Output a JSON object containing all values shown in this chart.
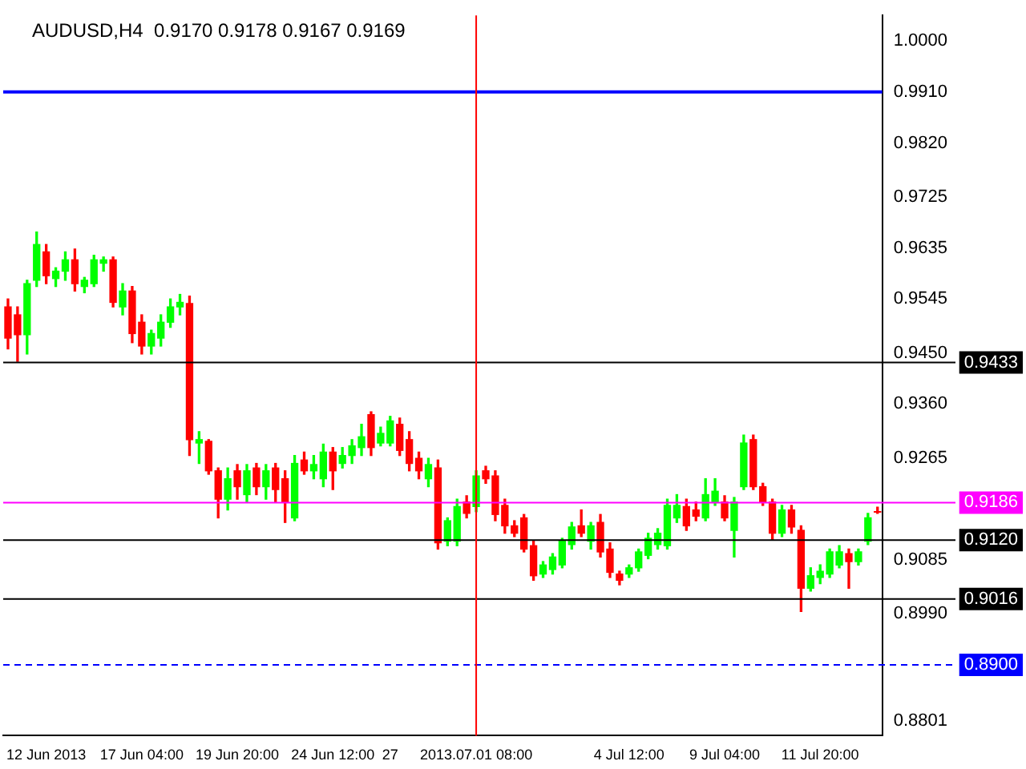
{
  "chart_data": {
    "type": "candlestick",
    "title": "AUDUSD,H4  0.9170 0.9178 0.9167 0.9169",
    "categories": [
      null,
      null,
      null,
      null,
      "12 Jun 2013",
      null,
      null,
      null,
      null,
      null,
      null,
      null,
      null,
      null,
      "17 Jun 04:00",
      null,
      null,
      null,
      null,
      null,
      null,
      null,
      null,
      null,
      "19 Jun 20:00",
      null,
      null,
      null,
      null,
      null,
      null,
      null,
      null,
      null,
      "24 Jun 12:00",
      null,
      null,
      null,
      null,
      null,
      "27",
      null,
      null,
      null,
      null,
      null,
      null,
      null,
      null,
      "2013.07.01 08:00",
      null,
      null,
      null,
      null,
      null,
      null,
      null,
      null,
      null,
      null,
      null,
      null,
      null,
      null,
      null,
      "4 Jul 12:00",
      null,
      null,
      null,
      null,
      null,
      null,
      null,
      null,
      null,
      "9 Jul 04:00",
      null,
      null,
      null,
      null,
      null,
      null,
      null,
      null,
      null,
      "11 Jul 20:00",
      null,
      null,
      null,
      null,
      null,
      null
    ],
    "ohlc": [
      [
        0.9531,
        0.9545,
        0.9457,
        0.9476
      ],
      [
        0.9517,
        0.9531,
        0.9435,
        0.9482
      ],
      [
        0.9482,
        0.9578,
        0.9448,
        0.9572
      ],
      [
        0.9578,
        0.9663,
        0.9567,
        0.9641
      ],
      [
        0.9628,
        0.9641,
        0.9572,
        0.9586
      ],
      [
        0.9581,
        0.96,
        0.9567,
        0.9594
      ],
      [
        0.9594,
        0.9628,
        0.9578,
        0.9614
      ],
      [
        0.9614,
        0.9633,
        0.9559,
        0.9572
      ],
      [
        0.9567,
        0.9583,
        0.9556,
        0.9578
      ],
      [
        0.9572,
        0.9622,
        0.9567,
        0.9614
      ],
      [
        0.9608,
        0.9619,
        0.9594,
        0.9614
      ],
      [
        0.9614,
        0.9619,
        0.9531,
        0.9539
      ],
      [
        0.9531,
        0.9572,
        0.9517,
        0.9559
      ],
      [
        0.9559,
        0.9567,
        0.9468,
        0.9484
      ],
      [
        0.9504,
        0.9517,
        0.9448,
        0.9462
      ],
      [
        0.9462,
        0.949,
        0.9448,
        0.9484
      ],
      [
        0.9476,
        0.9517,
        0.9462,
        0.9504
      ],
      [
        0.9504,
        0.9545,
        0.9495,
        0.9531
      ],
      [
        0.9531,
        0.9553,
        0.9517,
        0.9539
      ],
      [
        0.9537,
        0.955,
        0.9269,
        0.9297
      ],
      [
        0.9291,
        0.9311,
        0.9255,
        0.9297
      ],
      [
        0.9294,
        0.9297,
        0.9236,
        0.9242
      ],
      [
        0.9242,
        0.9247,
        0.9159,
        0.9192
      ],
      [
        0.9192,
        0.9247,
        0.9173,
        0.9228
      ],
      [
        0.9242,
        0.9253,
        0.9192,
        0.9214
      ],
      [
        0.92,
        0.9253,
        0.9187,
        0.9242
      ],
      [
        0.9247,
        0.9255,
        0.92,
        0.9214
      ],
      [
        0.9214,
        0.9253,
        0.9192,
        0.9242
      ],
      [
        0.9247,
        0.9255,
        0.9187,
        0.9209
      ],
      [
        0.9228,
        0.9242,
        0.9151,
        0.9187
      ],
      [
        0.9159,
        0.9269,
        0.9154,
        0.9255
      ],
      [
        0.9261,
        0.9275,
        0.9236,
        0.9242
      ],
      [
        0.9242,
        0.9269,
        0.9228,
        0.9253
      ],
      [
        0.9228,
        0.9289,
        0.9214,
        0.9275
      ],
      [
        0.9275,
        0.9283,
        0.9209,
        0.9242
      ],
      [
        0.9255,
        0.9283,
        0.9247,
        0.9269
      ],
      [
        0.9269,
        0.9297,
        0.9255,
        0.9286
      ],
      [
        0.9283,
        0.9324,
        0.9269,
        0.9302
      ],
      [
        0.9341,
        0.9346,
        0.9269,
        0.9283
      ],
      [
        0.9291,
        0.9319,
        0.9286,
        0.9308
      ],
      [
        0.9291,
        0.9338,
        0.9286,
        0.933
      ],
      [
        0.9324,
        0.9335,
        0.9269,
        0.9278
      ],
      [
        0.9297,
        0.9311,
        0.9242,
        0.9255
      ],
      [
        0.9264,
        0.9275,
        0.9228,
        0.9242
      ],
      [
        0.9228,
        0.9264,
        0.9214,
        0.9253
      ],
      [
        0.9247,
        0.9261,
        0.9104,
        0.9115
      ],
      [
        0.9118,
        0.9159,
        0.911,
        0.9154
      ],
      [
        0.9118,
        0.9192,
        0.911,
        0.9179
      ],
      [
        0.9187,
        0.9198,
        0.9159,
        0.9167
      ],
      [
        0.9179,
        0.9242,
        0.917,
        0.9233
      ],
      [
        0.9242,
        0.925,
        0.922,
        0.9228
      ],
      [
        0.9233,
        0.9242,
        0.9154,
        0.9165
      ],
      [
        0.9181,
        0.9192,
        0.9132,
        0.9145
      ],
      [
        0.9145,
        0.9154,
        0.9126,
        0.9132
      ],
      [
        0.9159,
        0.9165,
        0.9099,
        0.9104
      ],
      [
        0.911,
        0.9118,
        0.9049,
        0.9057
      ],
      [
        0.906,
        0.9082,
        0.9054,
        0.9076
      ],
      [
        0.9068,
        0.9096,
        0.906,
        0.909
      ],
      [
        0.9076,
        0.9123,
        0.9071,
        0.9118
      ],
      [
        0.9112,
        0.9151,
        0.9104,
        0.9143
      ],
      [
        0.9145,
        0.9173,
        0.9126,
        0.9132
      ],
      [
        0.9118,
        0.9151,
        0.9104,
        0.9145
      ],
      [
        0.9151,
        0.9165,
        0.909,
        0.9099
      ],
      [
        0.9104,
        0.9115,
        0.9054,
        0.9063
      ],
      [
        0.906,
        0.9065,
        0.9041,
        0.9049
      ],
      [
        0.906,
        0.9076,
        0.9054,
        0.9071
      ],
      [
        0.9071,
        0.9104,
        0.9065,
        0.9099
      ],
      [
        0.9093,
        0.9132,
        0.9087,
        0.9123
      ],
      [
        0.9112,
        0.914,
        0.9104,
        0.9132
      ],
      [
        0.911,
        0.9192,
        0.9104,
        0.9181
      ],
      [
        0.9159,
        0.92,
        0.9151,
        0.9181
      ],
      [
        0.9179,
        0.9192,
        0.9137,
        0.9145
      ],
      [
        0.9173,
        0.9187,
        0.9154,
        0.9162
      ],
      [
        0.9159,
        0.9228,
        0.9154,
        0.92
      ],
      [
        0.9187,
        0.9228,
        0.9181,
        0.9206
      ],
      [
        0.9187,
        0.9198,
        0.9154,
        0.9159
      ],
      [
        0.9137,
        0.9195,
        0.909,
        0.9187
      ],
      [
        0.9214,
        0.9305,
        0.9209,
        0.9291
      ],
      [
        0.9297,
        0.9305,
        0.9209,
        0.9214
      ],
      [
        0.9214,
        0.922,
        0.9181,
        0.9187
      ],
      [
        0.9187,
        0.9192,
        0.912,
        0.9132
      ],
      [
        0.9132,
        0.9181,
        0.9126,
        0.9173
      ],
      [
        0.9173,
        0.9181,
        0.9132,
        0.9143
      ],
      [
        0.9137,
        0.9145,
        0.8994,
        0.9035
      ],
      [
        0.9035,
        0.9071,
        0.903,
        0.9057
      ],
      [
        0.9054,
        0.9076,
        0.9043,
        0.9065
      ],
      [
        0.906,
        0.9104,
        0.9054,
        0.9099
      ],
      [
        0.9076,
        0.911,
        0.9071,
        0.9099
      ],
      [
        0.9096,
        0.9104,
        0.9035,
        0.9082
      ],
      [
        0.9082,
        0.9104,
        0.9076,
        0.9099
      ],
      [
        0.9118,
        0.9167,
        0.9112,
        0.9159
      ],
      [
        0.917,
        0.9178,
        0.9167,
        0.9169
      ]
    ],
    "colors": [
      "#ff0000",
      "#ff0000",
      "#00ff00",
      "#00ff00",
      "#ff0000",
      "#00ff00",
      "#00ff00",
      "#ff0000",
      "#00ff00",
      "#00ff00",
      "#00ff00",
      "#ff0000",
      "#00ff00",
      "#ff0000",
      "#ff0000",
      "#00ff00",
      "#00ff00",
      "#00ff00",
      "#00ff00",
      "#ff0000",
      "#00ff00",
      "#ff0000",
      "#ff0000",
      "#00ff00",
      "#ff0000",
      "#00ff00",
      "#ff0000",
      "#00ff00",
      "#ff0000",
      "#ff0000",
      "#00ff00",
      "#ff0000",
      "#00ff00",
      "#00ff00",
      "#ff0000",
      "#00ff00",
      "#00ff00",
      "#00ff00",
      "#ff0000",
      "#00ff00",
      "#00ff00",
      "#ff0000",
      "#ff0000",
      "#ff0000",
      "#00ff00",
      "#ff0000",
      "#00ff00",
      "#00ff00",
      "#ff0000",
      "#00ff00",
      "#ff0000",
      "#ff0000",
      "#ff0000",
      "#ff0000",
      "#ff0000",
      "#ff0000",
      "#00ff00",
      "#00ff00",
      "#00ff00",
      "#00ff00",
      "#ff0000",
      "#00ff00",
      "#ff0000",
      "#ff0000",
      "#ff0000",
      "#00ff00",
      "#00ff00",
      "#00ff00",
      "#00ff00",
      "#00ff00",
      "#00ff00",
      "#ff0000",
      "#ff0000",
      "#00ff00",
      "#00ff00",
      "#ff0000",
      "#00ff00",
      "#00ff00",
      "#ff0000",
      "#ff0000",
      "#ff0000",
      "#00ff00",
      "#ff0000",
      "#ff0000",
      "#00ff00",
      "#00ff00",
      "#00ff00",
      "#00ff00",
      "#ff0000",
      "#00ff00",
      "#00ff00",
      "#ff0000"
    ],
    "ylim": [
      0.8775,
      1.0045
    ],
    "yticks": [
      0.8801,
      {
        "value": 0.899,
        "label": "0.8990"
      },
      0.9085,
      0.9265,
      {
        "value": 0.936,
        "label": "0.9360"
      },
      {
        "value": 0.945,
        "label": "0.9450"
      },
      0.9545,
      0.9635,
      0.9725,
      {
        "value": 0.982,
        "label": "0.9820"
      },
      {
        "value": 0.991,
        "label": "0.9910"
      },
      {
        "value": 1,
        "label": "1.0000"
      }
    ],
    "ref_lines": [
      {
        "axis": "y",
        "value": 0.991,
        "color": "#0000ff"
      },
      {
        "axis": "y",
        "value": 0.9433,
        "label": "0.9433",
        "color": "#000000"
      },
      {
        "axis": "y",
        "value": 0.9186,
        "label": "0.9186",
        "color": "#ff00ff"
      },
      {
        "axis": "y",
        "value": 0.912,
        "label": "0.9120",
        "color": "#000000"
      },
      {
        "axis": "y",
        "value": 0.9016,
        "label": "0.9016",
        "color": "#000000"
      },
      {
        "axis": "y",
        "value": 0.89,
        "label": "0.8900",
        "color": "#0000ff",
        "line_style": "dashed"
      },
      {
        "axis": "x",
        "value": "2013.07.01 08:00",
        "color": "#ff0000"
      }
    ],
    "grid": false,
    "legend": false
  }
}
